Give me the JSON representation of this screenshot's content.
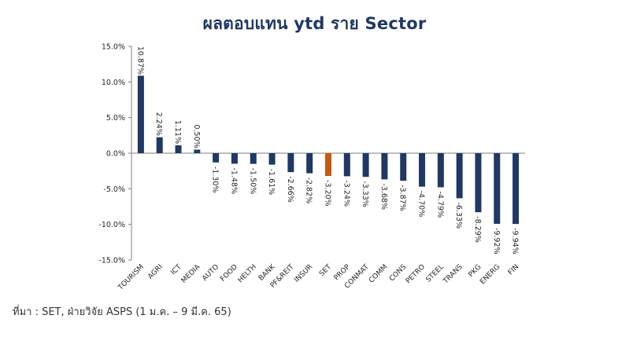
{
  "chart_data": {
    "type": "bar",
    "title": "ผลตอบแทน ytd ราย Sector",
    "categories": [
      "TOURISM",
      "AGRI",
      "ICT",
      "MEDIA",
      "AUTO",
      "FOOD",
      "HELTH",
      "BANK",
      "PF&REIT",
      "INSUR",
      "SET",
      "PROP",
      "CONMAT",
      "COMM",
      "CONS",
      "PETRO",
      "STEEL",
      "TRANS",
      "PKG",
      "ENERG",
      "FIN"
    ],
    "values": [
      10.87,
      2.24,
      1.11,
      0.5,
      -1.3,
      -1.48,
      -1.5,
      -1.61,
      -2.66,
      -2.82,
      -3.2,
      -3.24,
      -3.33,
      -3.68,
      -3.87,
      -4.7,
      -4.79,
      -6.33,
      -8.29,
      -9.92,
      -9.94
    ],
    "data_labels": [
      "10.87%",
      "2.24%",
      "1.11%",
      "0.50%",
      "-1.30%",
      "-1.48%",
      "-1.50%",
      "-1.61%",
      "-2.66%",
      "-2.82%",
      "-3.20%",
      "-3.24%",
      "-3.33%",
      "-3.68%",
      "-3.87%",
      "-4.70%",
      "-4.79%",
      "-6.33%",
      "-8.29%",
      "-9.92%",
      "-9.94%"
    ],
    "highlight_category": "SET",
    "ylim": [
      -15,
      15
    ],
    "yticks": [
      15,
      10,
      5,
      0,
      -5,
      -10,
      -15
    ],
    "ytick_labels": [
      "15.0%",
      "10.0%",
      "5.0%",
      "0.0%",
      "-5.0%",
      "-10.0%",
      "-15.0%"
    ],
    "xlabel": "",
    "ylabel": "",
    "grid": false,
    "colors": {
      "bar": "#1f3864",
      "highlight": "#c55a11",
      "axis": "#7f7f7f",
      "title": "#1f3864"
    }
  },
  "source_note": "ที่มา : SET, ฝ่ายวิจัย ASPS (1 ม.ค. – 9 มี.ค. 65)"
}
